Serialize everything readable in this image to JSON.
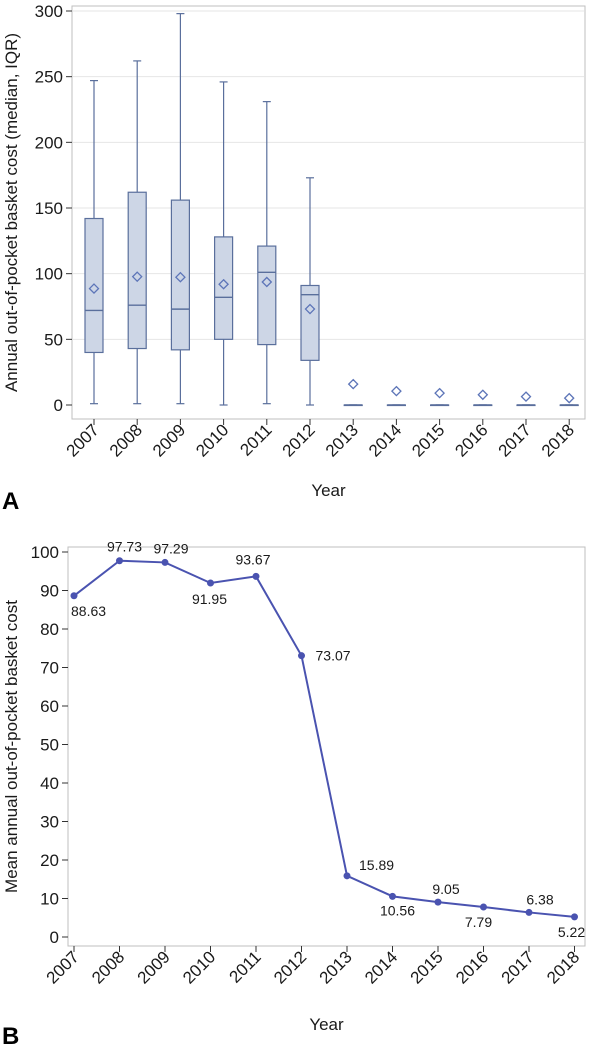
{
  "colors": {
    "box_fill": "#cdd6e6",
    "box_stroke": "#5a6f9c",
    "mean_marker": "#5d75b8",
    "line": "#4a53b0",
    "gridline": "#e6e6e6",
    "frame": "#bfbfbf"
  },
  "chart_data": [
    {
      "panel": "A",
      "type": "box",
      "xlabel": "Year",
      "ylabel": "Annual out-of-pocket basket cost (median, IQR)",
      "ylim": [
        0,
        300
      ],
      "yticks": [
        0,
        50,
        100,
        150,
        200,
        250,
        300
      ],
      "grid": true,
      "categories": [
        "2007",
        "2008",
        "2009",
        "2010",
        "2011",
        "2012",
        "2013",
        "2014",
        "2015",
        "2016",
        "2017",
        "2018"
      ],
      "boxes": [
        {
          "min": 1,
          "q1": 40,
          "median": 72,
          "q3": 142,
          "max": 247,
          "mean": 88.63
        },
        {
          "min": 1,
          "q1": 43,
          "median": 76,
          "q3": 162,
          "max": 262,
          "mean": 97.73
        },
        {
          "min": 1,
          "q1": 42,
          "median": 73,
          "q3": 156,
          "max": 298,
          "mean": 97.29
        },
        {
          "min": 0,
          "q1": 50,
          "median": 82,
          "q3": 128,
          "max": 246,
          "mean": 91.95
        },
        {
          "min": 1,
          "q1": 46,
          "median": 101,
          "q3": 121,
          "max": 231,
          "mean": 93.67
        },
        {
          "min": 0,
          "q1": 34,
          "median": 84,
          "q3": 91,
          "max": 173,
          "mean": 73.07
        },
        {
          "min": 0,
          "q1": 0,
          "median": 0,
          "q3": 0,
          "max": 0,
          "mean": 15.89
        },
        {
          "min": 0,
          "q1": 0,
          "median": 0,
          "q3": 0,
          "max": 0,
          "mean": 10.56
        },
        {
          "min": 0,
          "q1": 0,
          "median": 0,
          "q3": 0,
          "max": 0,
          "mean": 9.05
        },
        {
          "min": 0,
          "q1": 0,
          "median": 0,
          "q3": 0,
          "max": 0,
          "mean": 7.79
        },
        {
          "min": 0,
          "q1": 0,
          "median": 0,
          "q3": 0,
          "max": 0,
          "mean": 6.38
        },
        {
          "min": 0,
          "q1": 0,
          "median": 0,
          "q3": 0,
          "max": 0,
          "mean": 5.22
        }
      ]
    },
    {
      "panel": "B",
      "type": "line",
      "xlabel": "Year",
      "ylabel": "Mean annual out-of-pocket basket cost",
      "ylim": [
        0,
        100
      ],
      "yticks": [
        0,
        10,
        20,
        30,
        40,
        50,
        60,
        70,
        80,
        90,
        100
      ],
      "grid": false,
      "x": [
        "2007",
        "2008",
        "2009",
        "2010",
        "2011",
        "2012",
        "2013",
        "2014",
        "2015",
        "2016",
        "2017",
        "2018"
      ],
      "values": [
        88.63,
        97.73,
        97.29,
        91.95,
        93.67,
        73.07,
        15.89,
        10.56,
        9.05,
        7.79,
        6.38,
        5.22
      ],
      "value_labels": [
        "88.63",
        "97.73",
        "97.29",
        "91.95",
        "93.67",
        "73.07",
        "15.89",
        "10.56",
        "9.05",
        "7.79",
        "6.38",
        "5.22"
      ]
    }
  ]
}
